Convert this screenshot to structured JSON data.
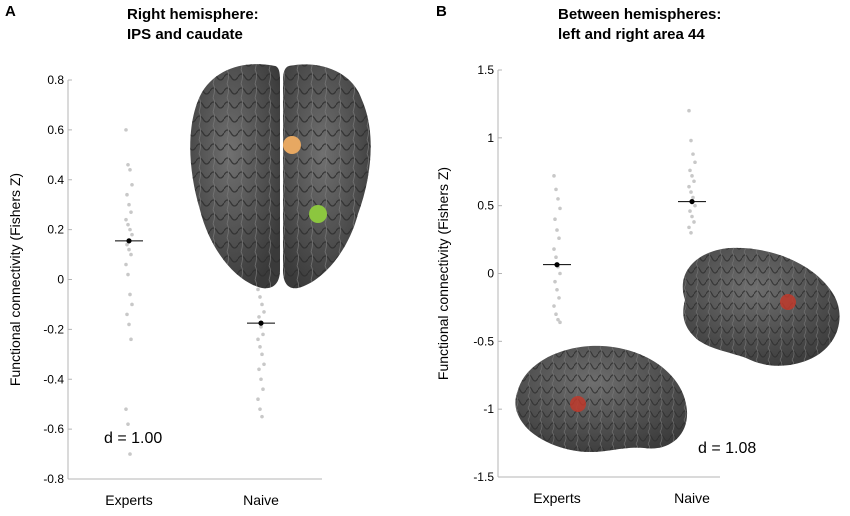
{
  "panels": {
    "A": {
      "letter": "A",
      "title_line1": "Right hemisphere:",
      "title_line2": "IPS and caudate"
    },
    "B": {
      "letter": "B",
      "title_line1": "Between hemispheres:",
      "title_line2": "left and right area 44"
    }
  },
  "chart_data": [
    {
      "type": "scatter",
      "panel": "A",
      "title": "Right hemisphere: IPS and caudate",
      "ylabel": "Functional connectivity (Fishers Z)",
      "xlabel": "",
      "categories": [
        "Experts",
        "Naive"
      ],
      "ylim": [
        -0.8,
        0.8
      ],
      "yticks": [
        "0.8",
        "0.6",
        "0.4",
        "0.2",
        "0",
        "-0.2",
        "-0.4",
        "-0.6",
        "-0.8"
      ],
      "ytick_values": [
        0.8,
        0.6,
        0.4,
        0.2,
        0,
        -0.2,
        -0.4,
        -0.6,
        -0.8
      ],
      "means": [
        0.155,
        -0.175
      ],
      "points": [
        [
          0.6,
          0.46,
          0.44,
          0.38,
          0.34,
          0.3,
          0.27,
          0.24,
          0.22,
          0.2,
          0.18,
          0.14,
          0.12,
          0.1,
          0.06,
          0.02,
          -0.06,
          -0.1,
          -0.14,
          -0.18,
          -0.24,
          -0.52,
          -0.58,
          -0.7
        ],
        [
          -0.04,
          -0.07,
          -0.1,
          -0.13,
          -0.15,
          -0.19,
          -0.22,
          -0.24,
          -0.27,
          -0.3,
          -0.34,
          -0.36,
          -0.4,
          -0.44,
          -0.48,
          -0.52,
          -0.55
        ]
      ],
      "annotation": "d = 1.00",
      "grid": false,
      "colors": {
        "raw": "#c8c8c8",
        "mean": "#000000"
      }
    },
    {
      "type": "scatter",
      "panel": "B",
      "title": "Between hemispheres: left and right area 44",
      "ylabel": "Functional connectivity (Fishers Z)",
      "xlabel": "",
      "categories": [
        "Experts",
        "Naive"
      ],
      "ylim": [
        -1.5,
        1.5
      ],
      "yticks": [
        "1.5",
        "1",
        "0.5",
        "0",
        "-0.5",
        "-1",
        "-1.5"
      ],
      "ytick_values": [
        1.5,
        1.0,
        0.5,
        0,
        -0.5,
        -1.0,
        -1.5
      ],
      "means": [
        0.065,
        0.53
      ],
      "points": [
        [
          0.72,
          0.62,
          0.55,
          0.48,
          0.4,
          0.32,
          0.26,
          0.18,
          0.12,
          0.05,
          0.0,
          -0.06,
          -0.12,
          -0.18,
          -0.24,
          -0.3,
          -0.34,
          -0.36
        ],
        [
          1.2,
          0.98,
          0.88,
          0.82,
          0.76,
          0.72,
          0.68,
          0.64,
          0.6,
          0.56,
          0.5,
          0.46,
          0.42,
          0.38,
          0.34,
          0.3
        ]
      ],
      "annotation": "d = 1.08",
      "grid": false,
      "colors": {
        "raw": "#c8c8c8",
        "mean": "#000000"
      }
    }
  ],
  "brain_colors": {
    "cortex": "#5b5b5b",
    "cortex_dark": "#3c3c3c",
    "roi_ips": "#e7a862",
    "roi_caudate": "#8cc63f",
    "roi_area44": "#c0392b"
  }
}
